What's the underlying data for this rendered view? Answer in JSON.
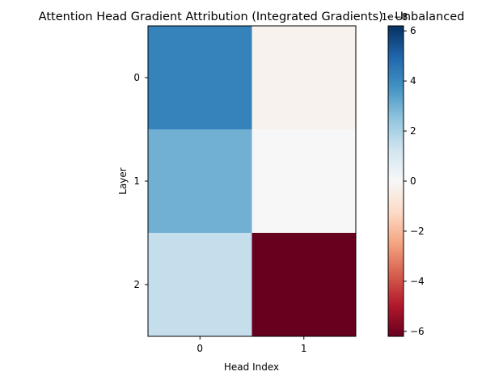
{
  "chart_data": {
    "type": "heatmap",
    "title": "Attention Head Gradient Attribution (Integrated Gradients) - Unbalanced",
    "xlabel": "Head Index",
    "ylabel": "Layer",
    "x_ticks": [
      "0",
      "1"
    ],
    "y_ticks": [
      "0",
      "1",
      "2"
    ],
    "rows": [
      [
        4.2,
        -0.2
      ],
      [
        3.0,
        0.0
      ],
      [
        1.5,
        -6.2
      ]
    ],
    "value_scale": 1e-08,
    "colormap": "RdBu",
    "colorbar": {
      "vmin": -6.2,
      "vmax": 6.2,
      "ticks": [
        "−6",
        "−4",
        "−2",
        "0",
        "2",
        "4",
        "6"
      ],
      "tick_values": [
        -6,
        -4,
        -2,
        0,
        2,
        4,
        6
      ],
      "offset_label": "1e−8"
    },
    "grid": false
  }
}
